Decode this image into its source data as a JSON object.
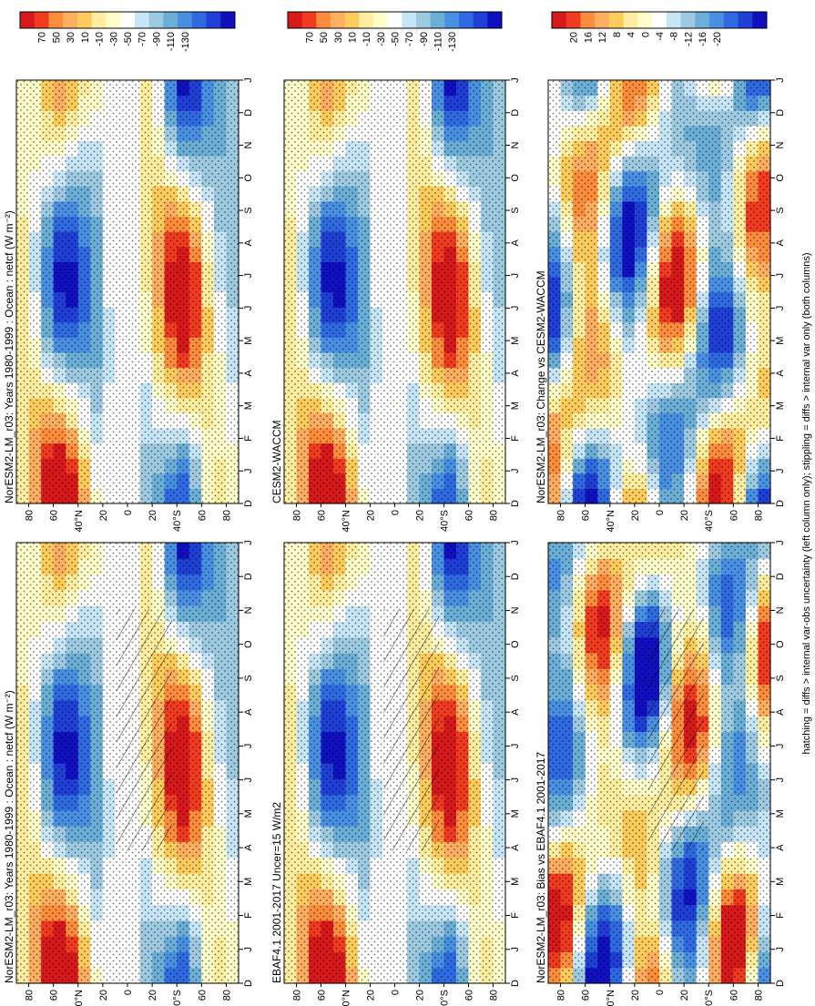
{
  "figure": {
    "footnote": "hatching = diffs > internal var-obs uncertainty (left column only); stippling = diffs > internal var only (both columns)"
  },
  "chart_data": [
    {
      "type": "heatmap",
      "title": "NorESM2-LM_r03: Years 1980-1999 : Ocean : netcf (W m⁻²)",
      "x": [
        "D",
        "J",
        "F",
        "M",
        "A",
        "M",
        "J",
        "J",
        "A",
        "S",
        "O",
        "N",
        "D",
        "J"
      ],
      "y": [
        "80",
        "60",
        "40°N",
        "20",
        "0",
        "20",
        "40°S",
        "60",
        "80"
      ],
      "colorbar": [
        "70",
        "50",
        "30",
        "10",
        "-10",
        "-30",
        "-50",
        "-70",
        "-90",
        "-110",
        "-130"
      ],
      "kind": "climatology",
      "hatching": true,
      "stippling": true
    },
    {
      "type": "heatmap",
      "title": "NorESM2-LM_r03: Years 1980-1999 : Ocean : netcf (W m⁻²)",
      "x": [
        "D",
        "J",
        "F",
        "M",
        "A",
        "M",
        "J",
        "J",
        "A",
        "S",
        "O",
        "N",
        "D",
        "J"
      ],
      "y": [
        "80",
        "60",
        "40°N",
        "20",
        "0",
        "20",
        "40°S",
        "60",
        "80"
      ],
      "colorbar": [
        "70",
        "50",
        "30",
        "10",
        "-10",
        "-30",
        "-50",
        "-70",
        "-90",
        "-110",
        "-130"
      ],
      "kind": "climatology",
      "hatching": false,
      "stippling": true
    },
    {
      "type": "heatmap",
      "title": "EBAF4.1 2001-2017 Uncer=15 W/m2",
      "x": [
        "D",
        "J",
        "F",
        "M",
        "A",
        "M",
        "J",
        "J",
        "A",
        "S",
        "O",
        "N",
        "D",
        "J"
      ],
      "y": [
        "80",
        "60",
        "40°N",
        "20",
        "0",
        "20",
        "40°S",
        "60",
        "80"
      ],
      "colorbar": [
        "70",
        "50",
        "30",
        "10",
        "-10",
        "-30",
        "-50",
        "-70",
        "-90",
        "-110",
        "-130"
      ],
      "kind": "climatology",
      "hatching": true,
      "stippling": true
    },
    {
      "type": "heatmap",
      "title": "CESM2-WACCM",
      "x": [
        "D",
        "J",
        "F",
        "M",
        "A",
        "M",
        "J",
        "J",
        "A",
        "S",
        "O",
        "N",
        "D",
        "J"
      ],
      "y": [
        "80",
        "60",
        "40°N",
        "20",
        "0",
        "20",
        "40°S",
        "60",
        "80"
      ],
      "colorbar": [
        "70",
        "50",
        "30",
        "10",
        "-10",
        "-30",
        "-50",
        "-70",
        "-90",
        "-110",
        "-130"
      ],
      "kind": "climatology",
      "hatching": false,
      "stippling": true
    },
    {
      "type": "heatmap",
      "title": "NorESM2-LM_r03: Bias vs EBAF4.1 2001-2017",
      "x": [
        "D",
        "J",
        "F",
        "M",
        "A",
        "M",
        "J",
        "J",
        "A",
        "S",
        "O",
        "N",
        "D",
        "J"
      ],
      "y": [
        "80",
        "60",
        "40°N",
        "20",
        "0",
        "20",
        "40°S",
        "60",
        "80"
      ],
      "colorbar": [
        "20",
        "16",
        "12",
        "8",
        "4",
        "0",
        "-4",
        "-8",
        "-12",
        "-16",
        "-20"
      ],
      "kind": "difference",
      "hatching": true,
      "stippling": true
    },
    {
      "type": "heatmap",
      "title": "NorESM2-LM_r03: Change vs CESM2-WACCM",
      "x": [
        "D",
        "J",
        "F",
        "M",
        "A",
        "M",
        "J",
        "J",
        "A",
        "S",
        "O",
        "N",
        "D",
        "J"
      ],
      "y": [
        "80",
        "60",
        "40°N",
        "20",
        "0",
        "20",
        "40°S",
        "60",
        "80"
      ],
      "colorbar": [
        "20",
        "16",
        "12",
        "8",
        "4",
        "0",
        "-4",
        "-8",
        "-12",
        "-16",
        "-20"
      ],
      "kind": "difference",
      "hatching": false,
      "stippling": true
    }
  ],
  "colors": {
    "warm": [
      "#d7191c",
      "#f03b20",
      "#fd8d3c",
      "#fdae61",
      "#fecc5c",
      "#ffeda0",
      "#ffffcc"
    ],
    "neutral": "#ffffff",
    "cool": [
      "#c6e5f7",
      "#9ecae1",
      "#6baed6",
      "#4a90e2",
      "#2f6ae0",
      "#1f3fd6",
      "#1010c0"
    ]
  }
}
